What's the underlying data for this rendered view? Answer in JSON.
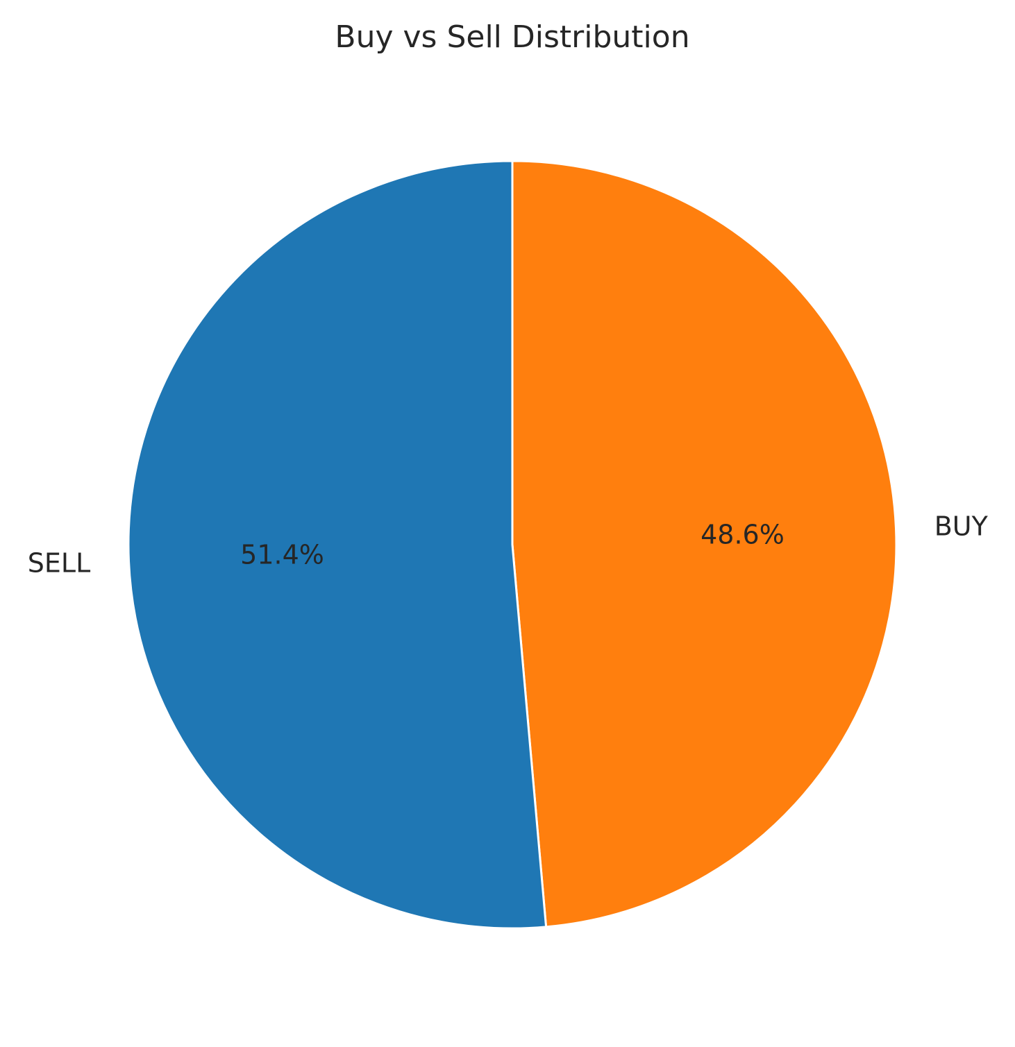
{
  "chart_data": {
    "type": "pie",
    "title": "Buy vs Sell Distribution",
    "categories": [
      "BUY",
      "SELL"
    ],
    "values": [
      48.6,
      51.4
    ],
    "percent_labels": [
      "48.6%",
      "51.4%"
    ],
    "colors": [
      "#ff7f0e",
      "#1f77b4"
    ],
    "wedge_edge_color": "#ffffff",
    "start_angle_deg": 90,
    "direction": "clockwise",
    "legend": "none"
  }
}
